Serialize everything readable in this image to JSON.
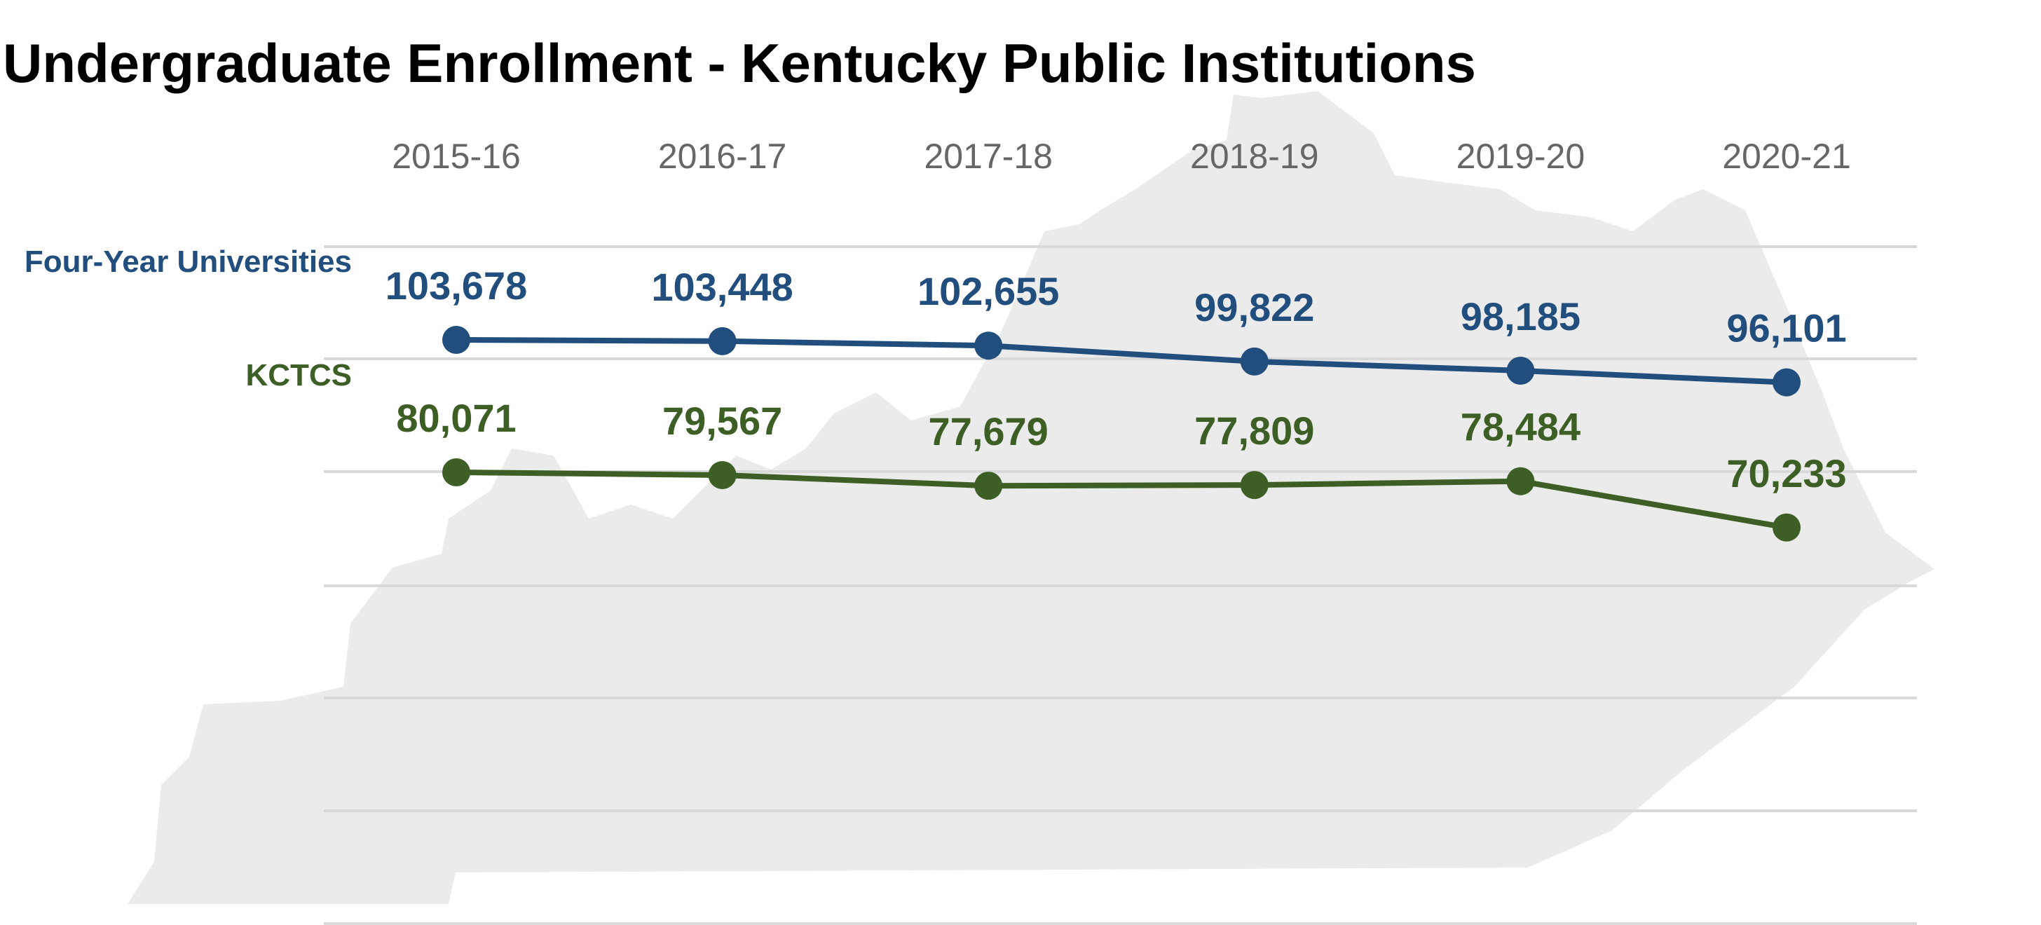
{
  "chart_data": {
    "type": "line",
    "title": "Undergraduate Enrollment - Kentucky Public Institutions",
    "xlabel": "",
    "ylabel": "",
    "grid": true,
    "legend": "inline-left",
    "background_image": "kentucky-state-silhouette",
    "categories": [
      "2015-16",
      "2016-17",
      "2017-18",
      "2018-19",
      "2019-20",
      "2020-21"
    ],
    "series": [
      {
        "name": "Four-Year Universities",
        "color": "#224e7e",
        "values": [
          103678,
          103448,
          102655,
          99822,
          98185,
          96101
        ],
        "labels": [
          "103,678",
          "103,448",
          "102,655",
          "99,822",
          "98,185",
          "96,101"
        ]
      },
      {
        "name": "KCTCS",
        "color": "#3d5e24",
        "values": [
          80071,
          79567,
          77679,
          77809,
          78484,
          70233
        ],
        "labels": [
          "80,071",
          "79,567",
          "77,679",
          "77,809",
          "78,484",
          "70,233"
        ]
      }
    ]
  }
}
